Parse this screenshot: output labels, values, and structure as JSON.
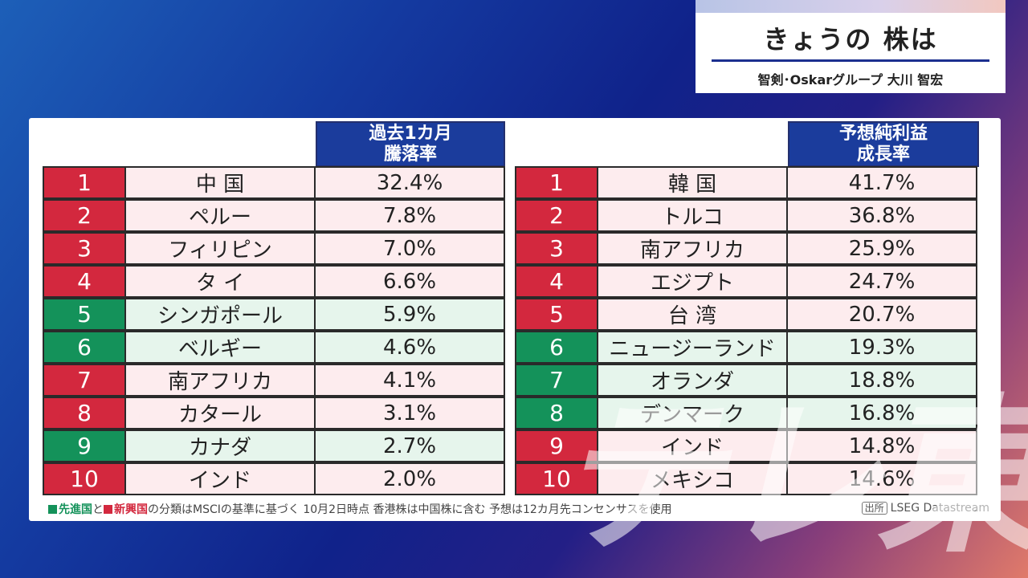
{
  "title": {
    "main": "きょうの 株は",
    "subtitle": "智剣･Oskarグループ 大川 智宏"
  },
  "left_table": {
    "header_line1": "過去1カ月",
    "header_line2": "騰落率",
    "rows": [
      {
        "rank": "1",
        "name": "中 国",
        "value": "32.4%",
        "type": "emerging"
      },
      {
        "rank": "2",
        "name": "ペルー",
        "value": "7.8%",
        "type": "emerging"
      },
      {
        "rank": "3",
        "name": "フィリピン",
        "value": "7.0%",
        "type": "emerging"
      },
      {
        "rank": "4",
        "name": "タ イ",
        "value": "6.6%",
        "type": "emerging"
      },
      {
        "rank": "5",
        "name": "シンガポール",
        "value": "5.9%",
        "type": "developed"
      },
      {
        "rank": "6",
        "name": "ベルギー",
        "value": "4.6%",
        "type": "developed"
      },
      {
        "rank": "7",
        "name": "南アフリカ",
        "value": "4.1%",
        "type": "emerging"
      },
      {
        "rank": "8",
        "name": "カタール",
        "value": "3.1%",
        "type": "emerging"
      },
      {
        "rank": "9",
        "name": "カナダ",
        "value": "2.7%",
        "type": "developed"
      },
      {
        "rank": "10",
        "name": "インド",
        "value": "2.0%",
        "type": "emerging"
      }
    ]
  },
  "right_table": {
    "header_line1": "予想純利益",
    "header_line2": "成長率",
    "rows": [
      {
        "rank": "1",
        "name": "韓 国",
        "value": "41.7%",
        "type": "emerging"
      },
      {
        "rank": "2",
        "name": "トルコ",
        "value": "36.8%",
        "type": "emerging"
      },
      {
        "rank": "3",
        "name": "南アフリカ",
        "value": "25.9%",
        "type": "emerging"
      },
      {
        "rank": "4",
        "name": "エジプト",
        "value": "24.7%",
        "type": "emerging"
      },
      {
        "rank": "5",
        "name": "台 湾",
        "value": "20.7%",
        "type": "emerging"
      },
      {
        "rank": "6",
        "name": "ニュージーランド",
        "value": "19.3%",
        "type": "developed"
      },
      {
        "rank": "7",
        "name": "オランダ",
        "value": "18.8%",
        "type": "developed"
      },
      {
        "rank": "8",
        "name": "デンマーク",
        "value": "16.8%",
        "type": "developed"
      },
      {
        "rank": "9",
        "name": "インド",
        "value": "14.8%",
        "type": "emerging"
      },
      {
        "rank": "10",
        "name": "メキシコ",
        "value": "14.6%",
        "type": "emerging"
      }
    ]
  },
  "footnote": {
    "developed": "先進国",
    "and": "と",
    "emerging": "新興国",
    "text": "の分類はMSCIの基準に基づく 10月2日時点 香港株は中国株に含む 予想は12カ月先コンセンサスを使用"
  },
  "source": {
    "tag": "出所",
    "name": "LSEG Datastream"
  },
  "watermark": "テレ東",
  "colors": {
    "header_blue": "#1b3c9c",
    "emerging_red": "#d3283e",
    "developed_green": "#14925a"
  }
}
